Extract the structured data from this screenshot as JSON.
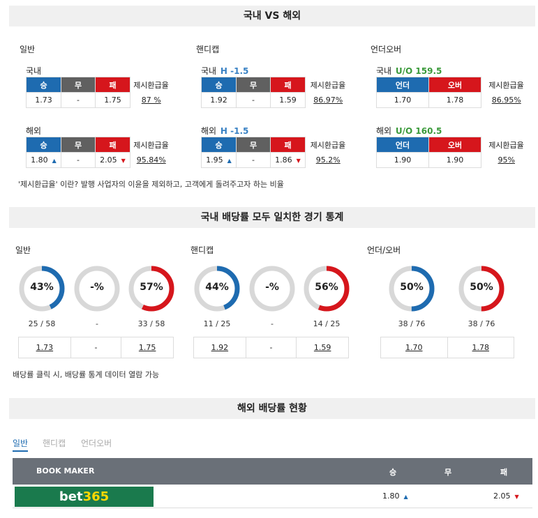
{
  "section1": {
    "title": "국내 VS 해외",
    "rate_label": "제시환급율",
    "note": "'제시환급율' 이란? 발행 사업자의 이윤을 제외하고, 고객에게 돌려주고자 하는 비율",
    "general": {
      "title": "일반",
      "headers": [
        "승",
        "무",
        "패"
      ],
      "domestic": {
        "label": "국내",
        "win": "1.73",
        "draw": "-",
        "lose": "1.75",
        "rate": "87 %"
      },
      "overseas": {
        "label": "해외",
        "win": "1.80",
        "draw": "-",
        "lose": "2.05",
        "rate": "95.84%"
      }
    },
    "handicap": {
      "title": "핸디캡",
      "headers": [
        "승",
        "무",
        "패"
      ],
      "domestic": {
        "label": "국내",
        "line": "H -1.5",
        "win": "1.92",
        "draw": "-",
        "lose": "1.59",
        "rate": "86.97%"
      },
      "overseas": {
        "label": "해외",
        "line": "H -1.5",
        "win": "1.95",
        "draw": "-",
        "lose": "1.86",
        "rate": "95.2%"
      }
    },
    "overunder": {
      "title": "언더오버",
      "headers": [
        "언더",
        "오버"
      ],
      "domestic": {
        "label": "국내",
        "line": "U/O 159.5",
        "under": "1.70",
        "over": "1.78",
        "rate": "86.95%"
      },
      "overseas": {
        "label": "해외",
        "line": "U/O 160.5",
        "under": "1.90",
        "over": "1.90",
        "rate": "95%"
      }
    }
  },
  "section2": {
    "title": "국내 배당률 모두 일치한 경기 통계",
    "note": "배당률 클릭 시, 배당률 통계 데이터 열람 가능",
    "general": {
      "title": "일반",
      "win": {
        "pct": "43%",
        "value": 43,
        "count": "25 / 58",
        "odds": "1.73"
      },
      "draw": {
        "pct": "-%",
        "count": "-",
        "odds": "-"
      },
      "lose": {
        "pct": "57%",
        "value": 57,
        "count": "33 / 58",
        "odds": "1.75"
      }
    },
    "handicap": {
      "title": "핸디캡",
      "win": {
        "pct": "44%",
        "value": 44,
        "count": "11 / 25",
        "odds": "1.92"
      },
      "draw": {
        "pct": "-%",
        "count": "-",
        "odds": "-"
      },
      "lose": {
        "pct": "56%",
        "value": 56,
        "count": "14 / 25",
        "odds": "1.59"
      }
    },
    "overunder": {
      "title": "언더/오버",
      "under": {
        "pct": "50%",
        "value": 50,
        "count": "38 / 76",
        "odds": "1.70"
      },
      "over": {
        "pct": "50%",
        "value": 50,
        "count": "38 / 76",
        "odds": "1.78"
      }
    }
  },
  "section3": {
    "title": "해외 배당률 현황",
    "tabs": [
      "일반",
      "핸디캡",
      "언더오버"
    ],
    "table": {
      "col_bookmaker": "BOOK MAKER",
      "col_win": "승",
      "col_draw": "무",
      "col_lose": "패",
      "row": {
        "bookmaker_a": "bet",
        "bookmaker_b": "365",
        "win": "1.80",
        "draw": "",
        "lose": "2.05"
      }
    }
  },
  "colors": {
    "win": "#1e6bb0",
    "draw": "#606060",
    "lose": "#d6161c",
    "ring_bg": "#d8d8d8"
  }
}
